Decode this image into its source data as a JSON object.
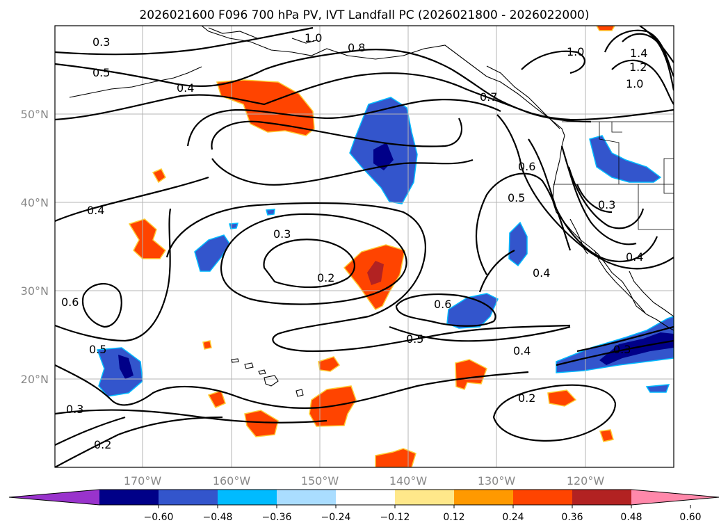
{
  "title": "2026021600 F096 700 hPa PV, IVT Landfall PC (2026021800 - 2026022000)",
  "lon_labels": [
    "170°W",
    "160°W",
    "150°W",
    "140°W",
    "130°W",
    "120°W"
  ],
  "lat_labels": [
    "50°N",
    "40°N",
    "30°N",
    "20°N"
  ],
  "colorbar": {
    "ticks": [
      "−0.60",
      "−0.48",
      "−0.36",
      "−0.24",
      "−0.12",
      "0.12",
      "0.24",
      "0.36",
      "0.48",
      "0.60"
    ],
    "colors": [
      "#9933cc",
      "#000088",
      "#3355cc",
      "#00bbff",
      "#aaddff",
      "#ffffff",
      "#ffe88a",
      "#ff9900",
      "#ff4400",
      "#b22222",
      "#ff88aa"
    ]
  },
  "contour_labels": [
    "0.3",
    "0.5",
    "0.4",
    "1.0",
    "0.8",
    "0.7",
    "1.0",
    "1.4",
    "1.2",
    "1.0",
    "0.6",
    "0.5",
    "0.3",
    "0.4",
    "0.4",
    "0.3",
    "0.2",
    "0.6",
    "0.4",
    "0.6",
    "0.5",
    "0.4",
    "0.5",
    "0.3",
    "0.2",
    "0.3",
    "0.2"
  ],
  "chart_data": {
    "type": "map",
    "title": "2026021600 F096 700 hPa PV, IVT Landfall PC (2026021800 - 2026022000)",
    "extent": {
      "lon": [
        -180,
        -110
      ],
      "lat": [
        10,
        60
      ]
    },
    "gridlines": true,
    "colorbar_levels": [
      -0.6,
      -0.48,
      -0.36,
      -0.24,
      -0.12,
      0.12,
      0.24,
      0.36,
      0.48,
      0.6
    ],
    "pv_contour_levels": [
      0.2,
      0.3,
      0.4,
      0.5,
      0.6,
      0.7,
      0.8,
      1.0,
      1.2,
      1.4
    ]
  }
}
